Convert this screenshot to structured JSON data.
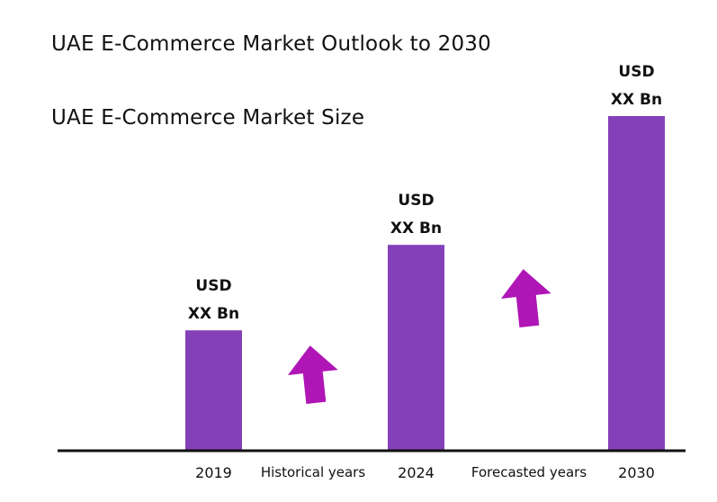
{
  "chart_data": {
    "type": "bar",
    "title": "UAE E-Commerce Market Outlook to 2030",
    "subtitle": "UAE E-Commerce Market Size",
    "categories": [
      "2019",
      "2024",
      "2030"
    ],
    "values": [
      1.0,
      1.71,
      2.78
    ],
    "value_labels": [
      [
        "USD",
        "XX Bn"
      ],
      [
        "USD",
        "XX Bn"
      ],
      [
        "USD",
        "XX Bn"
      ]
    ],
    "period_labels": [
      "Historical years",
      "Forecasted years"
    ],
    "ylim": [
      0,
      3.0
    ],
    "grid": false,
    "colors": {
      "bar": "#8440b8",
      "arrow": "#b015b6",
      "axis": "#111111"
    }
  }
}
